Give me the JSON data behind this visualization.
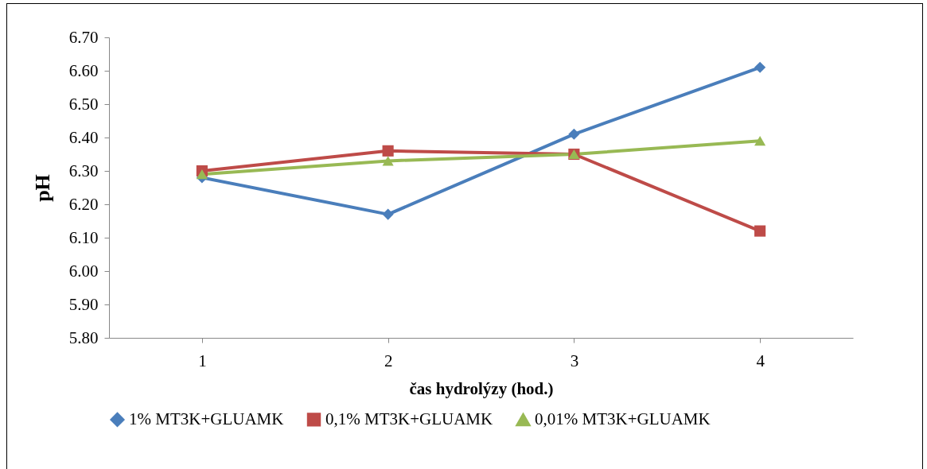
{
  "chart_data": {
    "type": "line",
    "xlabel": "čas hydrolýzy (hod.)",
    "ylabel": "pH",
    "categories": [
      "1",
      "2",
      "3",
      "4"
    ],
    "series": [
      {
        "name": "1% MT3K+GLUAMK",
        "color": "#4a7ebb",
        "marker": "diamond",
        "values": [
          6.28,
          6.17,
          6.41,
          6.61
        ]
      },
      {
        "name": "0,1% MT3K+GLUAMK",
        "color": "#be4b48",
        "marker": "square",
        "values": [
          6.3,
          6.36,
          6.35,
          6.12
        ]
      },
      {
        "name": "0,01% MT3K+GLUAMK",
        "color": "#98b954",
        "marker": "triangle",
        "values": [
          6.29,
          6.33,
          6.35,
          6.39
        ]
      }
    ],
    "ylim": [
      5.8,
      6.7
    ],
    "yticks": [
      {
        "value": 5.8,
        "label": "5.80"
      },
      {
        "value": 5.9,
        "label": "5.90"
      },
      {
        "value": 6.0,
        "label": "6.00"
      },
      {
        "value": 6.1,
        "label": "6.10"
      },
      {
        "value": 6.2,
        "label": "6.20"
      },
      {
        "value": 6.3,
        "label": "6.30"
      },
      {
        "value": 6.4,
        "label": "6.40"
      },
      {
        "value": 6.5,
        "label": "6.50"
      },
      {
        "value": 6.6,
        "label": "6.60"
      },
      {
        "value": 6.7,
        "label": "6.70"
      }
    ],
    "grid": false,
    "legend": "bottom"
  }
}
